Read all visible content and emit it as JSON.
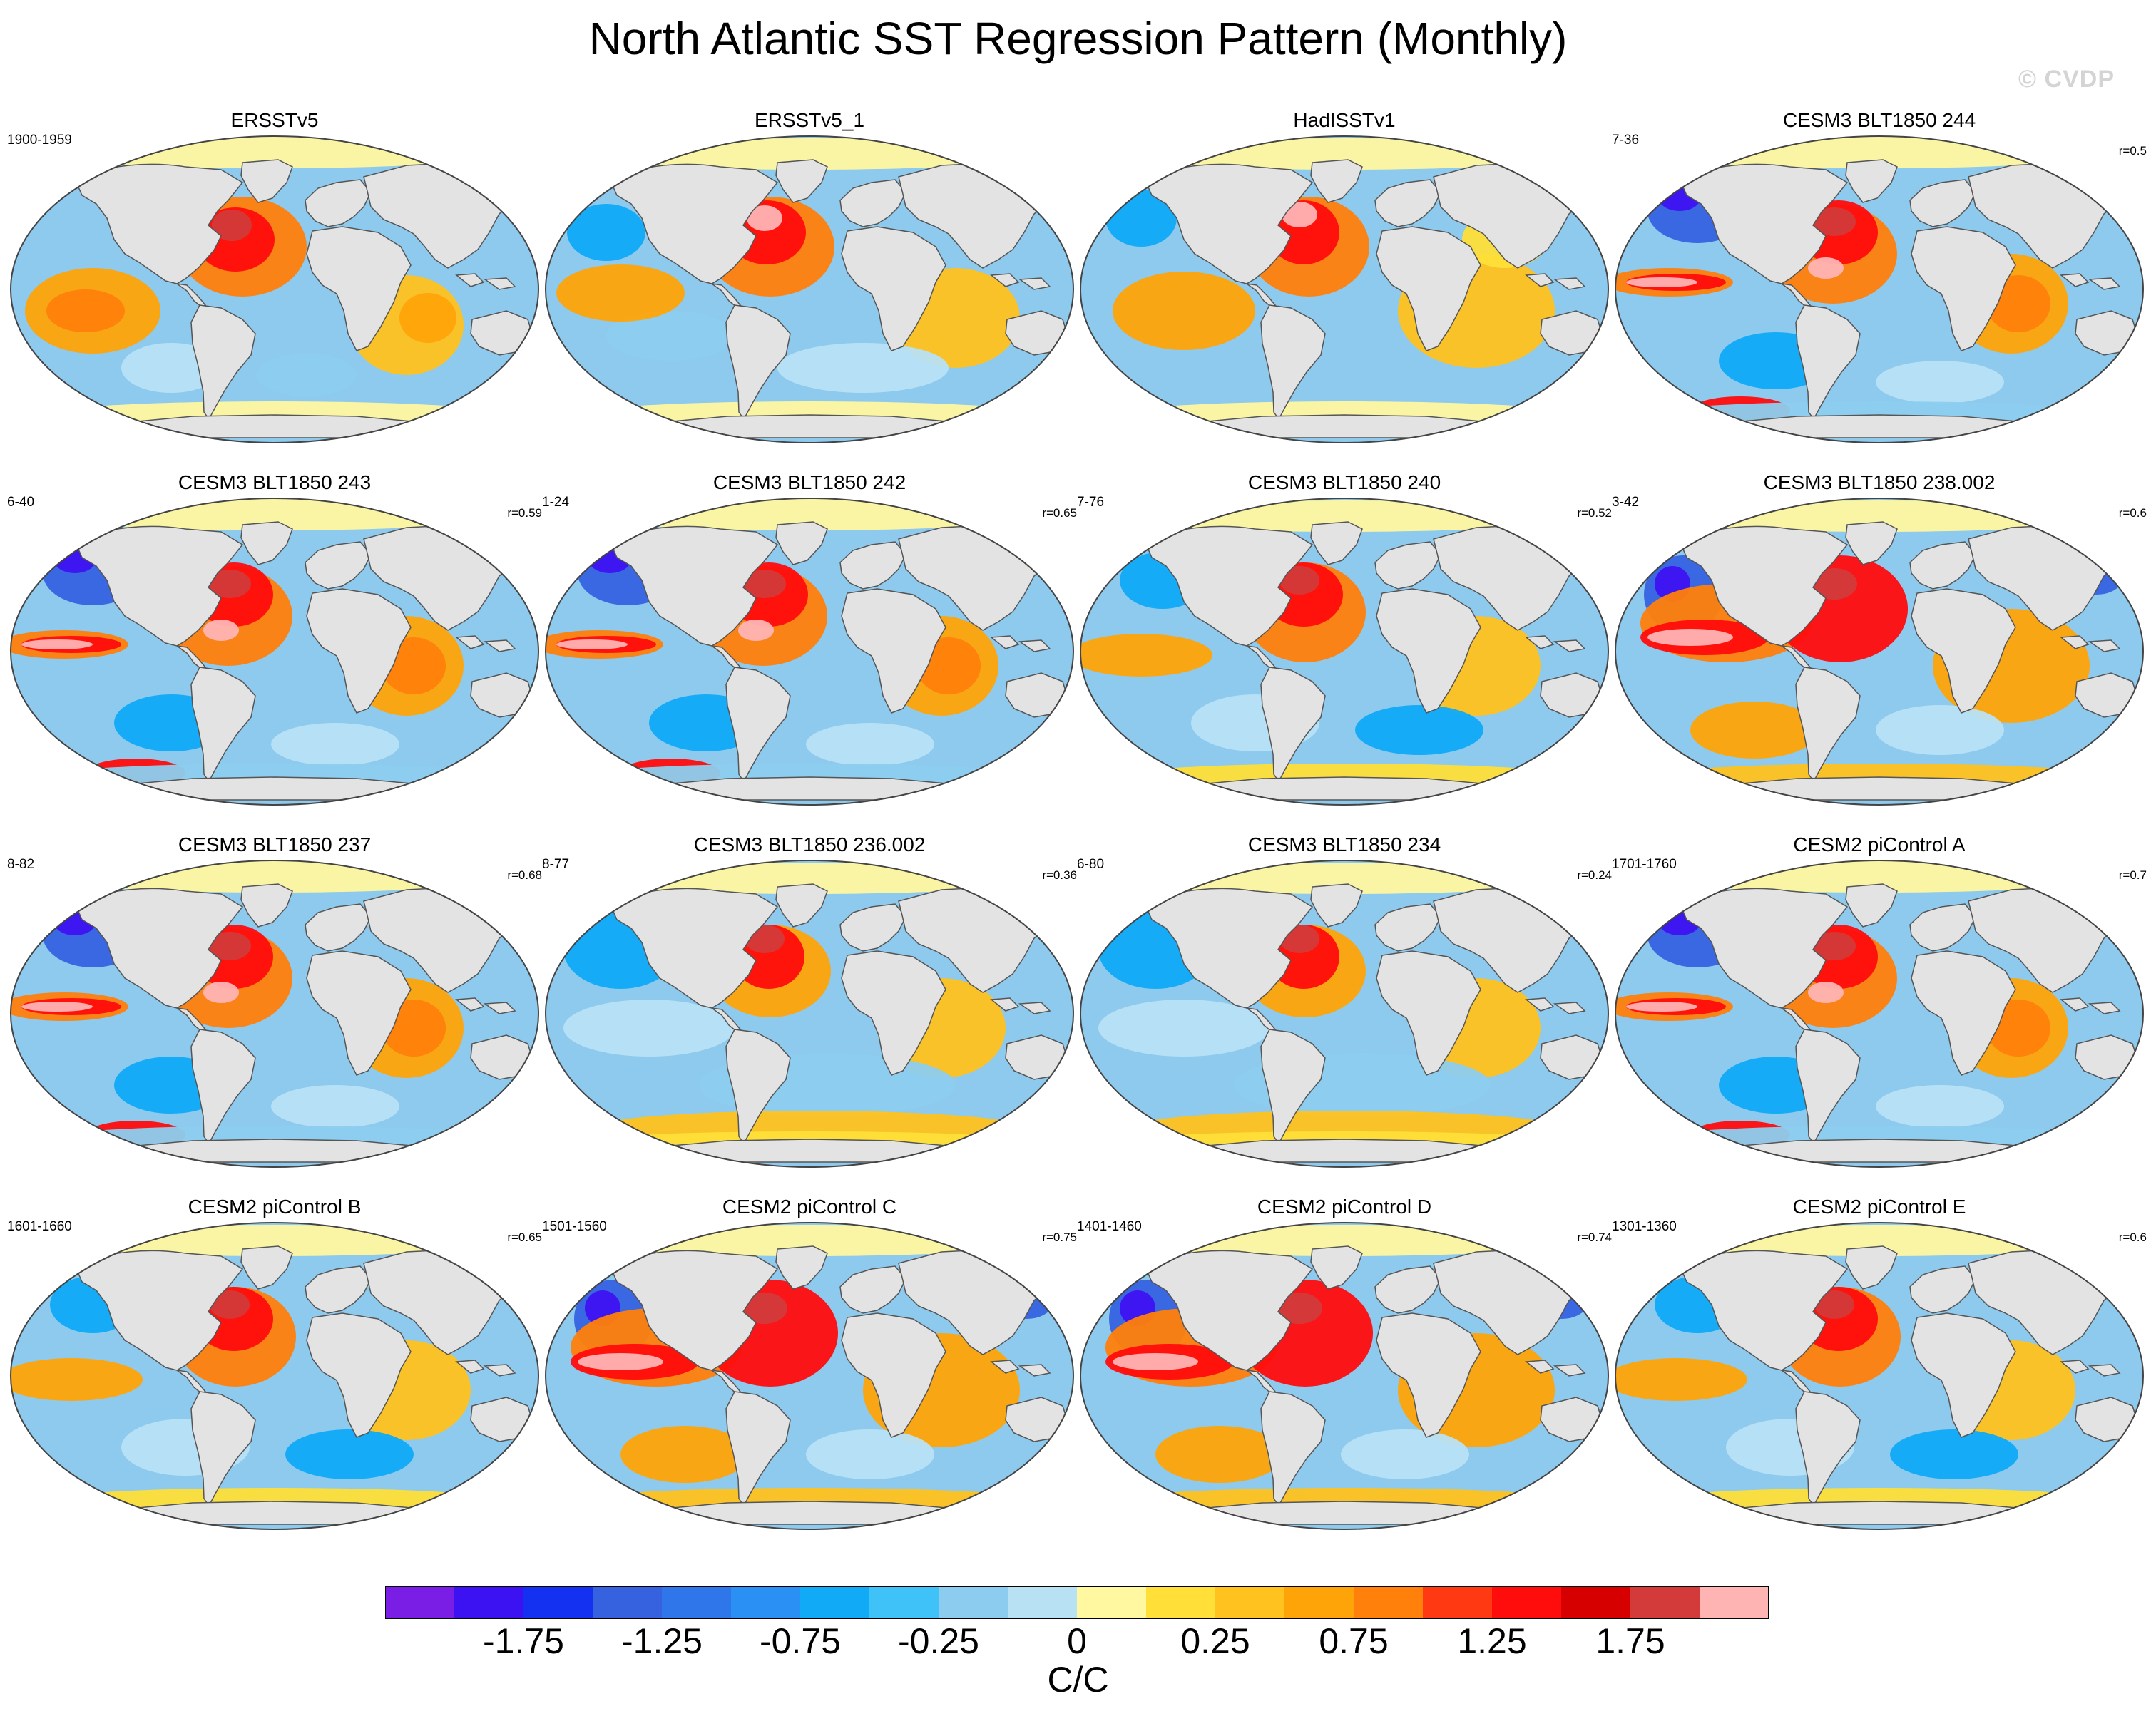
{
  "title": "North Atlantic SST Regression Pattern (Monthly)",
  "watermark": "© CVDP",
  "units": "C/C",
  "colors": {
    "ocean_background": "#8ec9ee",
    "land": "#e3e3e3",
    "coast": "#555555",
    "outline": "#444444"
  },
  "colorbar": {
    "colors": [
      "#7a1ee6",
      "#3d12f2",
      "#1430f0",
      "#3662e0",
      "#2e76ea",
      "#2a90f4",
      "#10aaf6",
      "#3ec2f7",
      "#8ccdef",
      "#b8e2f4",
      "#fff8a0",
      "#ffdf38",
      "#ffc21e",
      "#ffa408",
      "#ff800a",
      "#ff3a12",
      "#ff0c0c",
      "#d60000",
      "#d33a3a",
      "#ffb4b4"
    ],
    "labels": [
      "-1.75",
      "-1.25",
      "-0.75",
      "-0.25",
      "0",
      "0.25",
      "0.75",
      "1.25",
      "1.75"
    ]
  },
  "panels": [
    {
      "title": "ERSSTv5",
      "years": "1900-1959",
      "r": "",
      "pattern": "obs"
    },
    {
      "title": "ERSSTv5_1",
      "years": "",
      "r": "",
      "pattern": "obs2"
    },
    {
      "title": "HadISSTv1",
      "years": "",
      "r": "",
      "pattern": "obs3"
    },
    {
      "title": "CESM3 BLT1850 244",
      "years": "7-36",
      "r": "r=0.5",
      "pattern": "enso"
    },
    {
      "title": "CESM3 BLT1850 243",
      "years": "6-40",
      "r": "r=0.59",
      "pattern": "enso"
    },
    {
      "title": "CESM3 BLT1850 242",
      "years": "1-24",
      "r": "r=0.65",
      "pattern": "enso"
    },
    {
      "title": "CESM3 BLT1850 240",
      "years": "7-76",
      "r": "r=0.52",
      "pattern": "mixed"
    },
    {
      "title": "CESM3 BLT1850 238.002",
      "years": "3-42",
      "r": "r=0.6",
      "pattern": "warm"
    },
    {
      "title": "CESM3 BLT1850 237",
      "years": "8-82",
      "r": "r=0.68",
      "pattern": "enso"
    },
    {
      "title": "CESM3 BLT1850 236.002",
      "years": "8-77",
      "r": "r=0.36",
      "pattern": "cool"
    },
    {
      "title": "CESM3 BLT1850 234",
      "years": "6-80",
      "r": "r=0.24",
      "pattern": "cool"
    },
    {
      "title": "CESM2 piControl A",
      "years": "1701-1760",
      "r": "r=0.7",
      "pattern": "enso"
    },
    {
      "title": "CESM2 piControl B",
      "years": "1601-1660",
      "r": "r=0.65",
      "pattern": "mixed"
    },
    {
      "title": "CESM2 piControl C",
      "years": "1501-1560",
      "r": "r=0.75",
      "pattern": "warm"
    },
    {
      "title": "CESM2 piControl D",
      "years": "1401-1460",
      "r": "r=0.74",
      "pattern": "warm"
    },
    {
      "title": "CESM2 piControl E",
      "years": "1301-1360",
      "r": "r=0.6",
      "pattern": "mixed"
    }
  ]
}
